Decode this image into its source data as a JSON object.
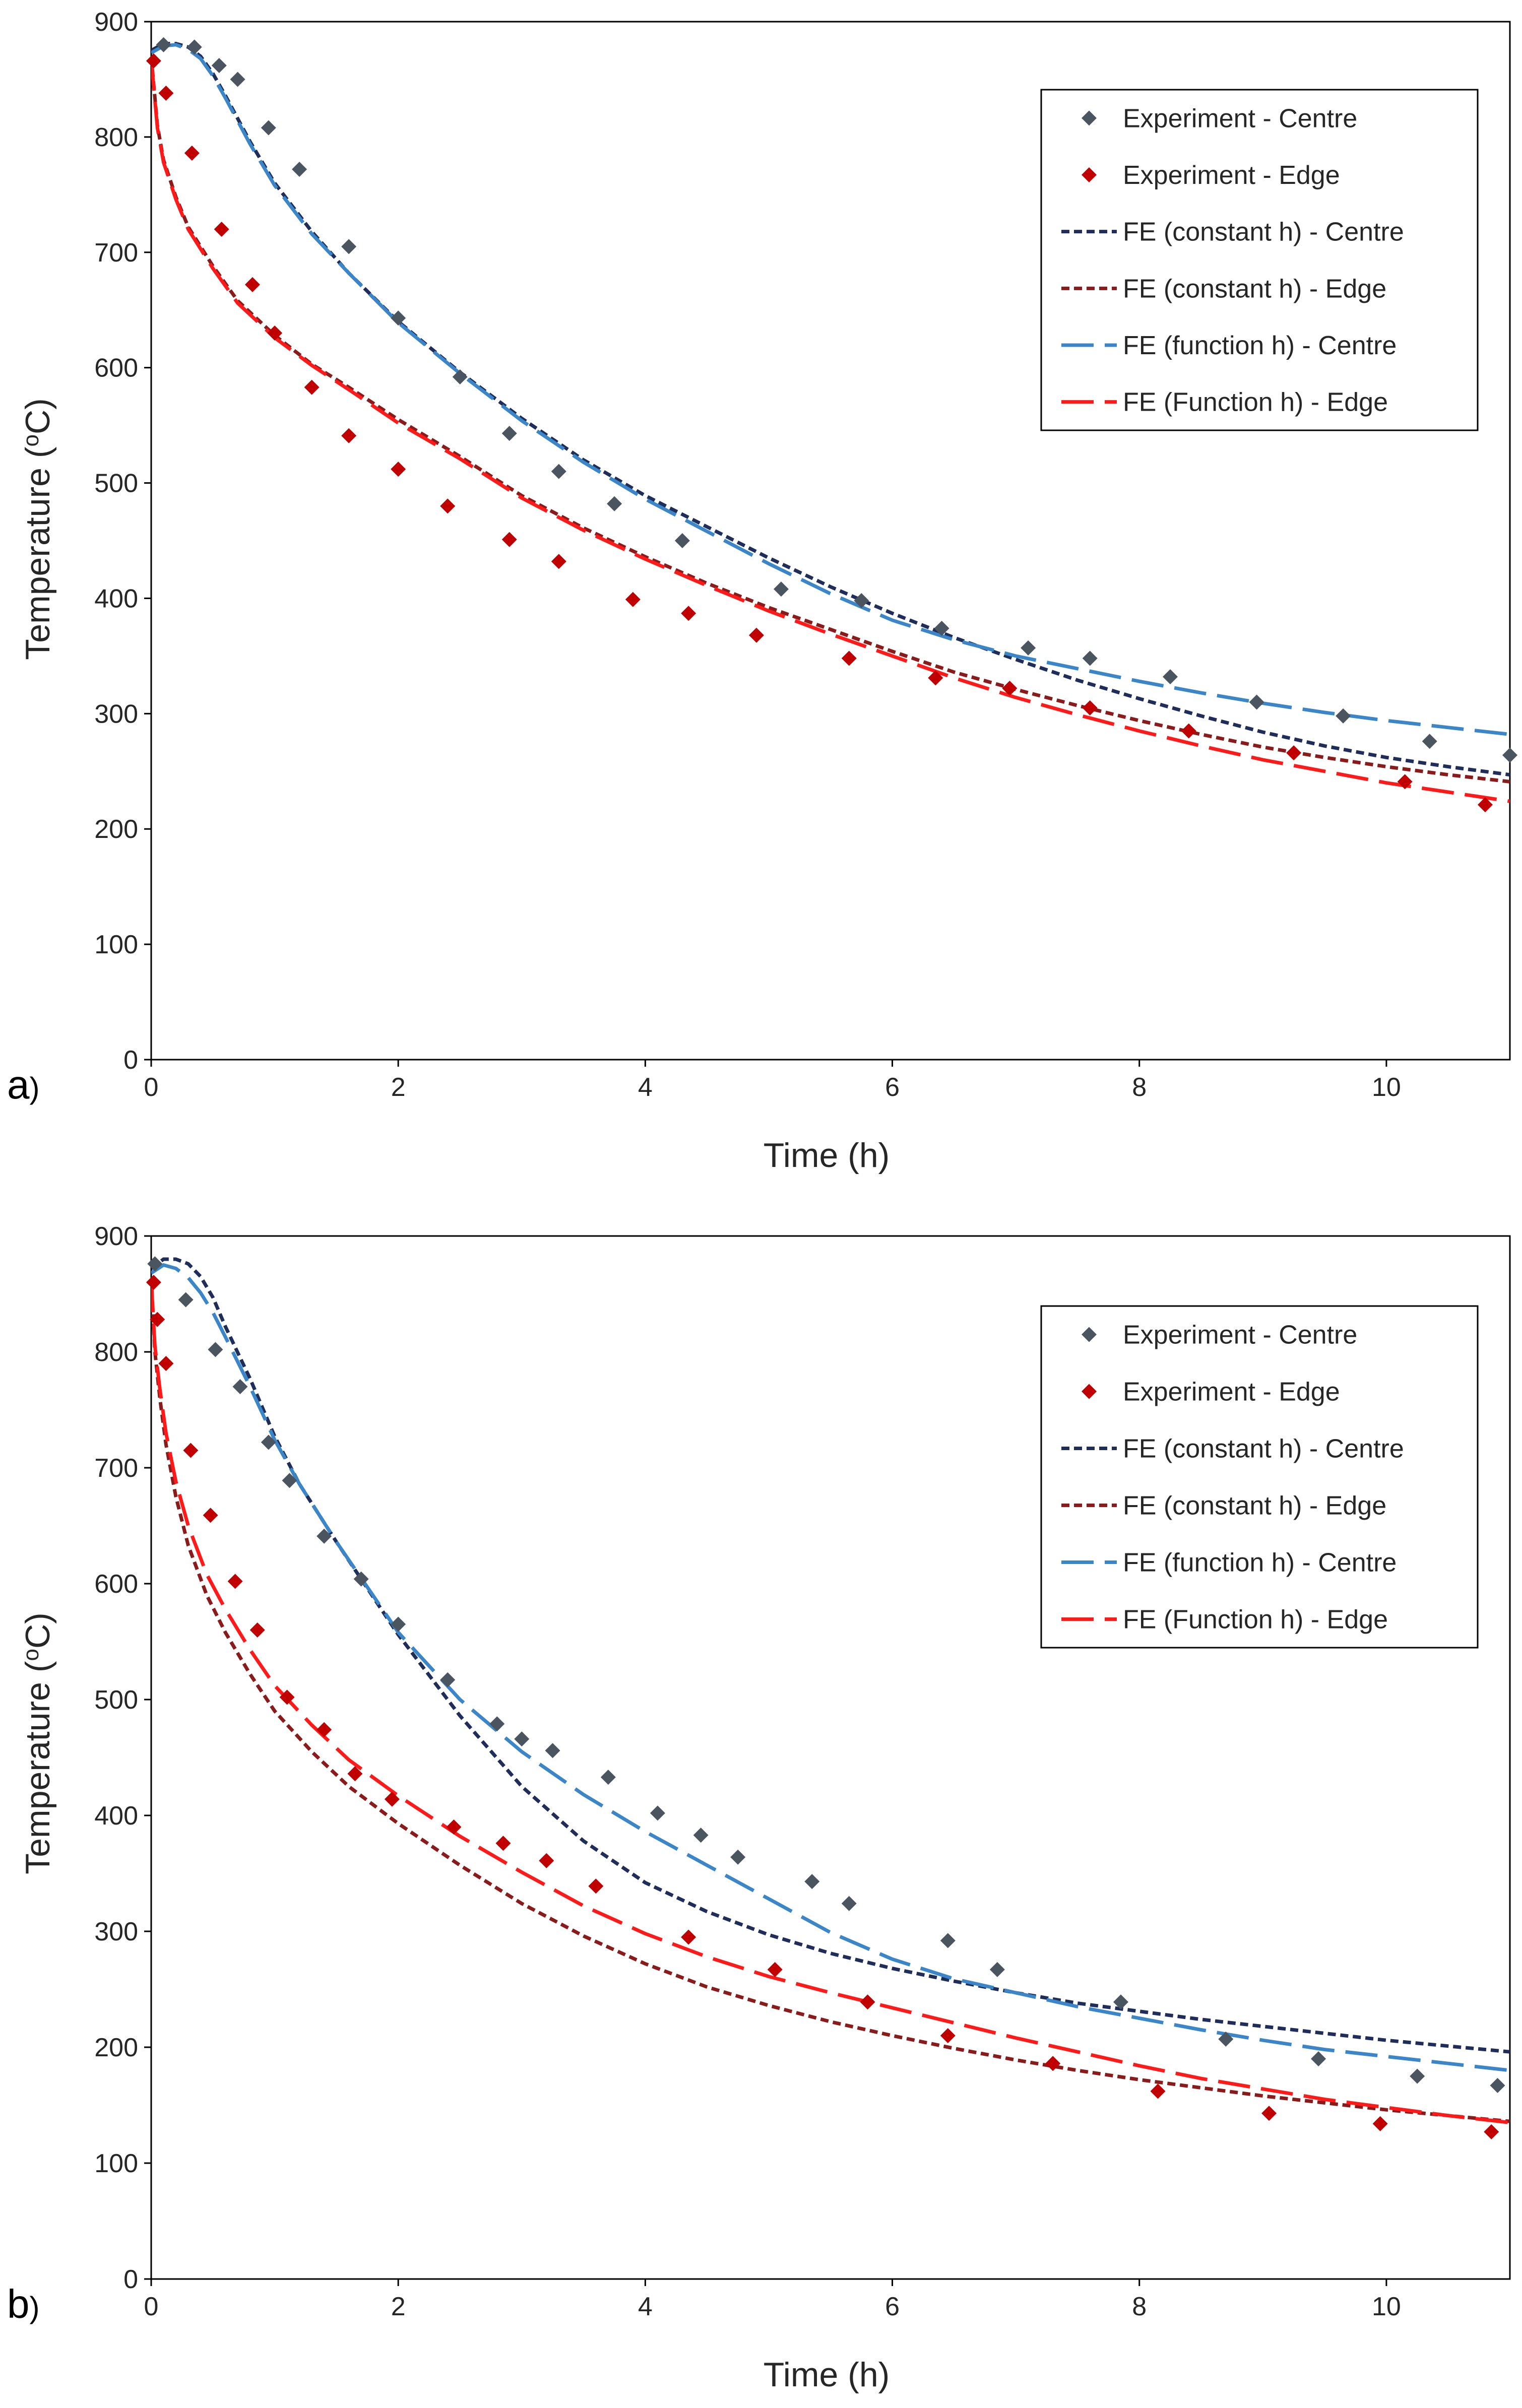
{
  "figure": {
    "panels": [
      "a",
      "b"
    ],
    "paren": ")"
  },
  "chart_data": [
    {
      "type": "scatter",
      "panel": "a",
      "title": "",
      "xlabel": "Time (h)",
      "ylabel": "Temperature (oC)",
      "ylabel_parts": [
        "Temperature (",
        "o",
        "C)"
      ],
      "xlim": [
        0,
        11
      ],
      "ylim": [
        0,
        900
      ],
      "xticks": [
        0,
        2,
        4,
        6,
        8,
        10
      ],
      "yticks": [
        0,
        100,
        200,
        300,
        400,
        500,
        600,
        700,
        800,
        900
      ],
      "grid": false,
      "legend_position": "top-right",
      "series": [
        {
          "name": "Experiment - Centre",
          "kind": "marker",
          "color": "#4a5560",
          "x": [
            0.1,
            0.35,
            0.55,
            0.7,
            0.95,
            1.2,
            1.6,
            2.0,
            2.5,
            2.9,
            3.3,
            3.75,
            4.3,
            5.1,
            5.75,
            6.4,
            7.1,
            7.6,
            8.25,
            8.95,
            9.65,
            10.35,
            11.0
          ],
          "y": [
            880,
            878,
            862,
            850,
            808,
            772,
            705,
            643,
            592,
            543,
            510,
            482,
            450,
            408,
            398,
            374,
            357,
            348,
            332,
            310,
            298,
            276,
            264
          ]
        },
        {
          "name": "Experiment - Edge",
          "kind": "marker",
          "color": "#c00000",
          "x": [
            0.02,
            0.12,
            0.33,
            0.57,
            0.82,
            1.0,
            1.3,
            1.6,
            2.0,
            2.4,
            2.9,
            3.3,
            3.9,
            4.35,
            4.9,
            5.65,
            6.35,
            6.95,
            7.6,
            8.4,
            9.25,
            10.15,
            10.8
          ],
          "y": [
            866,
            838,
            786,
            720,
            672,
            630,
            583,
            541,
            512,
            480,
            451,
            432,
            399,
            387,
            368,
            348,
            331,
            322,
            305,
            285,
            266,
            241,
            221
          ]
        },
        {
          "name": "FE (constant h) - Centre",
          "kind": "line",
          "dash": "short",
          "color": "#1f2d5a",
          "x": [
            0,
            0.1,
            0.2,
            0.3,
            0.4,
            0.5,
            0.6,
            0.8,
            1.0,
            1.3,
            1.6,
            2.0,
            2.5,
            3.0,
            3.5,
            4.0,
            4.5,
            5.0,
            5.5,
            6.0,
            6.5,
            7.0,
            7.5,
            8.0,
            8.5,
            9.0,
            9.5,
            10.0,
            10.5,
            11.0
          ],
          "y": [
            875,
            881,
            881,
            878,
            870,
            855,
            836,
            796,
            760,
            718,
            682,
            640,
            596,
            556,
            520,
            489,
            462,
            435,
            410,
            387,
            366,
            347,
            329,
            313,
            298,
            284,
            272,
            262,
            254,
            247
          ]
        },
        {
          "name": "FE (constant h) - Edge",
          "kind": "line",
          "dash": "short",
          "color": "#8b1a1a",
          "x": [
            0,
            0.05,
            0.1,
            0.2,
            0.3,
            0.5,
            0.7,
            1.0,
            1.3,
            1.6,
            2.0,
            2.5,
            3.0,
            3.5,
            4.0,
            4.5,
            5.0,
            5.5,
            6.0,
            6.5,
            7.0,
            7.5,
            8.0,
            8.5,
            9.0,
            9.5,
            10.0,
            10.5,
            11.0
          ],
          "y": [
            870,
            810,
            780,
            748,
            722,
            688,
            658,
            628,
            603,
            583,
            555,
            523,
            489,
            461,
            436,
            413,
            392,
            373,
            354,
            336,
            321,
            307,
            294,
            282,
            271,
            262,
            254,
            247,
            241
          ]
        },
        {
          "name": "FE (function h) - Centre",
          "kind": "line",
          "dash": "long",
          "color": "#3a86c8",
          "x": [
            0,
            0.1,
            0.2,
            0.3,
            0.4,
            0.5,
            0.6,
            0.8,
            1.0,
            1.3,
            1.6,
            2.0,
            2.5,
            3.0,
            3.5,
            4.0,
            4.5,
            5.0,
            5.5,
            6.0,
            6.5,
            7.0,
            7.5,
            8.0,
            8.5,
            9.0,
            9.5,
            10.0,
            10.5,
            11.0
          ],
          "y": [
            873,
            879,
            880,
            876,
            868,
            853,
            834,
            794,
            758,
            716,
            682,
            639,
            595,
            554,
            518,
            486,
            458,
            430,
            404,
            381,
            364,
            350,
            339,
            328,
            318,
            309,
            301,
            294,
            288,
            282
          ]
        },
        {
          "name": "FE (Function h) - Edge",
          "kind": "line",
          "dash": "long",
          "color": "#ff1a1a",
          "x": [
            0,
            0.05,
            0.1,
            0.2,
            0.3,
            0.5,
            0.7,
            1.0,
            1.3,
            1.6,
            2.0,
            2.5,
            3.0,
            3.5,
            4.0,
            4.5,
            5.0,
            5.5,
            6.0,
            6.5,
            7.0,
            7.5,
            8.0,
            8.5,
            9.0,
            9.5,
            10.0,
            10.5,
            11.0
          ],
          "y": [
            868,
            808,
            778,
            746,
            720,
            686,
            656,
            626,
            602,
            581,
            552,
            521,
            487,
            459,
            434,
            411,
            389,
            369,
            350,
            331,
            314,
            299,
            285,
            272,
            260,
            250,
            240,
            232,
            224
          ]
        }
      ]
    },
    {
      "type": "scatter",
      "panel": "b",
      "title": "",
      "xlabel": "Time (h)",
      "ylabel": "Temperature (oC)",
      "ylabel_parts": [
        "Temperature (",
        "o",
        "C)"
      ],
      "xlim": [
        0,
        11
      ],
      "ylim": [
        0,
        900
      ],
      "xticks": [
        0,
        2,
        4,
        6,
        8,
        10
      ],
      "yticks": [
        0,
        100,
        200,
        300,
        400,
        500,
        600,
        700,
        800,
        900
      ],
      "grid": false,
      "legend_position": "top-right",
      "series": [
        {
          "name": "Experiment - Centre",
          "kind": "marker",
          "color": "#4a5560",
          "x": [
            0.03,
            0.28,
            0.52,
            0.72,
            0.95,
            1.12,
            1.4,
            1.7,
            2.0,
            2.4,
            2.8,
            3.0,
            3.25,
            3.7,
            4.1,
            4.45,
            4.75,
            5.35,
            5.65,
            6.45,
            6.85,
            7.85,
            8.7,
            9.45,
            10.25,
            10.9
          ],
          "y": [
            876,
            845,
            802,
            770,
            722,
            689,
            641,
            604,
            565,
            517,
            479,
            466,
            456,
            433,
            402,
            383,
            364,
            343,
            324,
            292,
            267,
            239,
            207,
            190,
            175,
            167
          ]
        },
        {
          "name": "Experiment - Edge",
          "kind": "marker",
          "color": "#c00000",
          "x": [
            0.02,
            0.05,
            0.12,
            0.32,
            0.48,
            0.68,
            0.86,
            1.1,
            1.4,
            1.65,
            1.95,
            2.45,
            2.85,
            3.2,
            3.6,
            4.35,
            5.05,
            5.8,
            6.45,
            7.3,
            8.15,
            9.05,
            9.95,
            10.85
          ],
          "y": [
            860,
            828,
            790,
            715,
            659,
            602,
            560,
            502,
            474,
            436,
            414,
            390,
            376,
            361,
            339,
            295,
            267,
            239,
            210,
            186,
            162,
            143,
            134,
            127
          ]
        },
        {
          "name": "FE (constant h) - Centre",
          "kind": "line",
          "dash": "short",
          "color": "#1f2d5a",
          "x": [
            0,
            0.1,
            0.2,
            0.3,
            0.4,
            0.5,
            0.6,
            0.8,
            1.0,
            1.2,
            1.5,
            2.0,
            2.5,
            3.0,
            3.5,
            4.0,
            4.5,
            5.0,
            5.5,
            6.0,
            6.5,
            7.0,
            7.5,
            8.0,
            8.5,
            9.0,
            9.5,
            10.0,
            10.5,
            11.0
          ],
          "y": [
            872,
            880,
            880,
            876,
            865,
            847,
            822,
            777,
            727,
            686,
            636,
            556,
            486,
            425,
            378,
            342,
            317,
            297,
            281,
            268,
            257,
            247,
            238,
            231,
            224,
            218,
            212,
            206,
            201,
            196
          ]
        },
        {
          "name": "FE (constant h) - Edge",
          "kind": "line",
          "dash": "short",
          "color": "#8b1a1a",
          "x": [
            0,
            0.03,
            0.07,
            0.12,
            0.2,
            0.3,
            0.45,
            0.6,
            0.8,
            1.0,
            1.3,
            1.6,
            2.0,
            2.5,
            3.0,
            3.5,
            4.0,
            4.5,
            5.0,
            5.5,
            6.0,
            6.5,
            7.0,
            7.5,
            8.0,
            8.5,
            9.0,
            9.5,
            10.0,
            10.5,
            11.0
          ],
          "y": [
            865,
            800,
            760,
            720,
            675,
            633,
            590,
            558,
            522,
            490,
            455,
            425,
            393,
            357,
            324,
            296,
            272,
            252,
            236,
            222,
            210,
            199,
            189,
            180,
            172,
            165,
            158,
            152,
            146,
            141,
            136
          ]
        },
        {
          "name": "FE (function h) - Centre",
          "kind": "line",
          "dash": "long",
          "color": "#3a86c8",
          "x": [
            0,
            0.1,
            0.2,
            0.3,
            0.4,
            0.5,
            0.6,
            0.8,
            1.0,
            1.2,
            1.5,
            2.0,
            2.5,
            3.0,
            3.5,
            4.0,
            4.5,
            5.0,
            5.5,
            6.0,
            6.5,
            7.0,
            7.5,
            8.0,
            8.5,
            9.0,
            9.5,
            10.0,
            10.5,
            11.0
          ],
          "y": [
            868,
            875,
            872,
            864,
            851,
            834,
            813,
            770,
            724,
            686,
            636,
            558,
            500,
            455,
            418,
            386,
            357,
            328,
            299,
            276,
            259,
            247,
            235,
            225,
            215,
            206,
            198,
            192,
            186,
            180
          ]
        },
        {
          "name": "FE (Function h) - Edge",
          "kind": "line",
          "dash": "long",
          "color": "#ff1a1a",
          "x": [
            0,
            0.03,
            0.07,
            0.12,
            0.2,
            0.3,
            0.45,
            0.6,
            0.8,
            1.0,
            1.3,
            1.6,
            2.0,
            2.5,
            3.0,
            3.5,
            4.0,
            4.5,
            5.0,
            5.5,
            6.0,
            6.5,
            7.0,
            7.5,
            8.0,
            8.5,
            9.0,
            9.5,
            10.0,
            10.5,
            11.0
          ],
          "y": [
            862,
            805,
            768,
            730,
            688,
            650,
            608,
            578,
            543,
            512,
            478,
            448,
            417,
            382,
            351,
            322,
            298,
            278,
            261,
            247,
            234,
            221,
            208,
            196,
            184,
            173,
            164,
            155,
            148,
            141,
            135
          ]
        }
      ]
    }
  ]
}
